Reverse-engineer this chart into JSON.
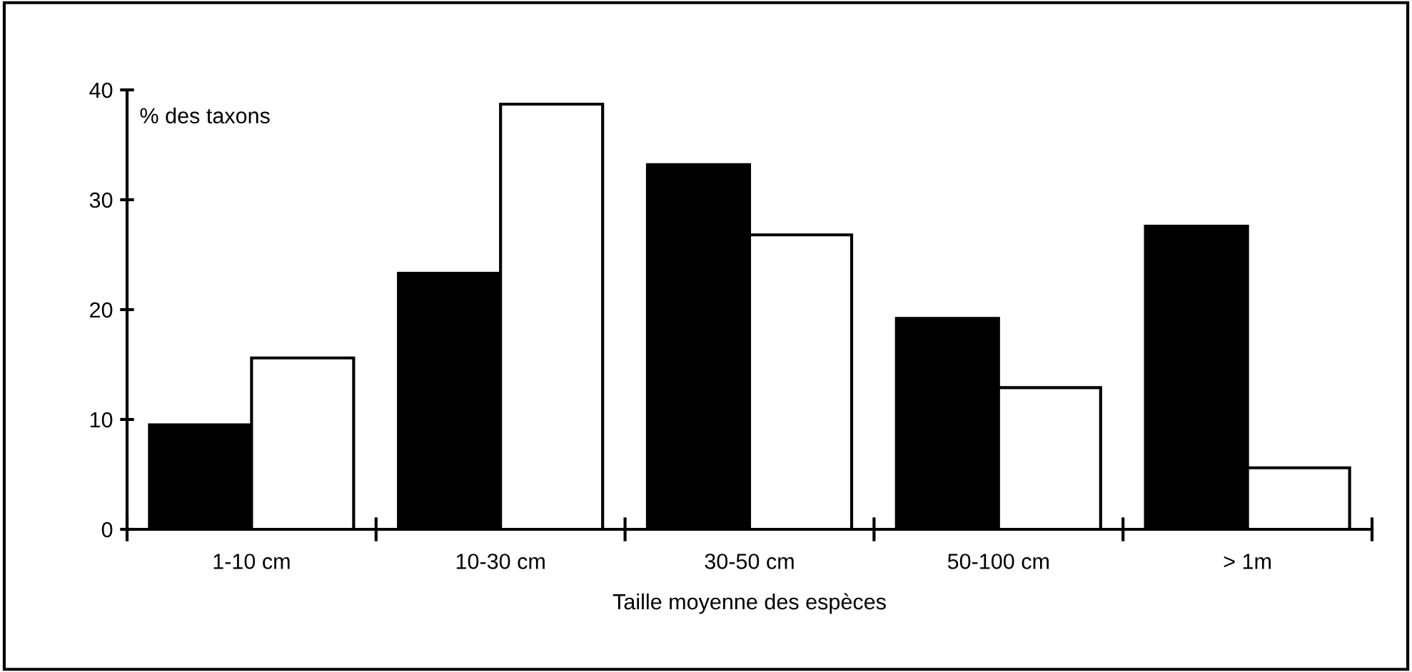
{
  "chart_data": {
    "type": "bar",
    "xlabel": "Taille moyenne des espèces",
    "ylabel": "% des taxons",
    "categories": [
      "1-10 cm",
      "10-30 cm",
      "30-50 cm",
      "50-100 cm",
      "> 1m"
    ],
    "series": [
      {
        "color": "#000000",
        "values": [
          9.5,
          23.3,
          33.2,
          19.2,
          27.6
        ]
      },
      {
        "color": "#ffffff",
        "values": [
          15.6,
          38.7,
          26.8,
          12.9,
          5.6
        ]
      }
    ],
    "ylim": [
      0,
      40
    ],
    "yticks": [
      0,
      10,
      20,
      30,
      40
    ],
    "grid": false,
    "legend": false
  }
}
